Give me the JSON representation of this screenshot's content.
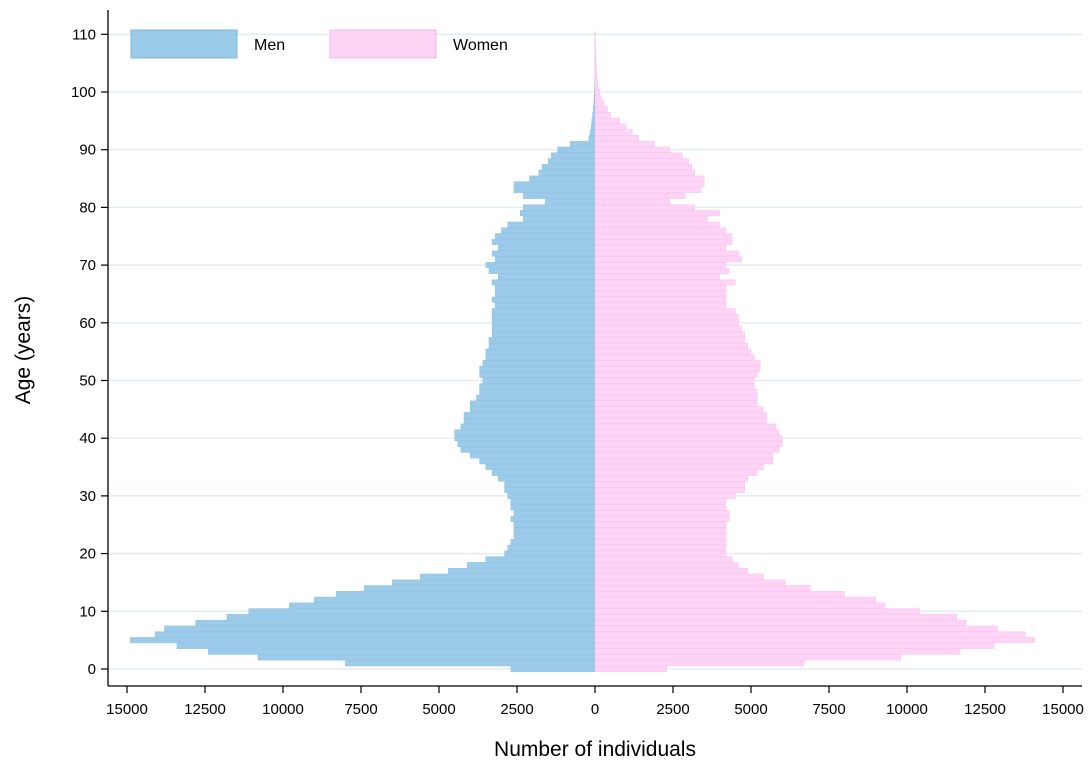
{
  "chart_data": {
    "type": "bar",
    "orientation": "horizontal",
    "title": "",
    "xlabel": "Number of individuals",
    "ylabel": "Age (years)",
    "x_ticks": [
      "15000",
      "12500",
      "10000",
      "7500",
      "5000",
      "2500",
      "0",
      "2500",
      "5000",
      "7500",
      "10000",
      "12500",
      "15000"
    ],
    "y_ticks": [
      "0",
      "10",
      "20",
      "30",
      "40",
      "50",
      "60",
      "70",
      "80",
      "90",
      "100",
      "110"
    ],
    "xlim": [
      -15000,
      15000
    ],
    "ylim": [
      0,
      110
    ],
    "grid": "horizontal",
    "legend_position": "top-left",
    "categories": [
      0,
      1,
      2,
      3,
      4,
      5,
      6,
      7,
      8,
      9,
      10,
      11,
      12,
      13,
      14,
      15,
      16,
      17,
      18,
      19,
      20,
      21,
      22,
      23,
      24,
      25,
      26,
      27,
      28,
      29,
      30,
      31,
      32,
      33,
      34,
      35,
      36,
      37,
      38,
      39,
      40,
      41,
      42,
      43,
      44,
      45,
      46,
      47,
      48,
      49,
      50,
      51,
      52,
      53,
      54,
      55,
      56,
      57,
      58,
      59,
      60,
      61,
      62,
      63,
      64,
      65,
      66,
      67,
      68,
      69,
      70,
      71,
      72,
      73,
      74,
      75,
      76,
      77,
      78,
      79,
      80,
      81,
      82,
      83,
      84,
      85,
      86,
      87,
      88,
      89,
      90,
      91,
      92,
      93,
      94,
      95,
      96,
      97,
      98,
      99,
      100,
      101,
      102,
      103,
      104,
      105,
      106,
      107,
      108,
      109,
      110
    ],
    "series": [
      {
        "name": "Men",
        "color": "#9ccbea",
        "edge": "#7fb6df",
        "values": [
          2700,
          8000,
          10800,
          12400,
          13400,
          14900,
          14100,
          13800,
          12800,
          11800,
          11100,
          9800,
          9000,
          8300,
          7400,
          6500,
          5600,
          4700,
          4100,
          3500,
          2900,
          2800,
          2700,
          2600,
          2600,
          2600,
          2700,
          2600,
          2700,
          2700,
          2800,
          2900,
          2900,
          3100,
          3300,
          3500,
          3700,
          4000,
          4300,
          4400,
          4500,
          4500,
          4300,
          4200,
          4200,
          4000,
          4000,
          3800,
          3700,
          3700,
          3600,
          3700,
          3700,
          3600,
          3500,
          3500,
          3400,
          3400,
          3300,
          3300,
          3300,
          3300,
          3300,
          3200,
          3300,
          3200,
          3200,
          3300,
          3100,
          3400,
          3500,
          3200,
          3300,
          3100,
          3300,
          3200,
          3000,
          2800,
          2300,
          2400,
          2300,
          1600,
          2300,
          2600,
          2600,
          2100,
          1800,
          1700,
          1500,
          1400,
          1200,
          800,
          200,
          150,
          120,
          100,
          80,
          60,
          40,
          30,
          20,
          15,
          10,
          8,
          5,
          4,
          3,
          2,
          2,
          1,
          1
        ]
      },
      {
        "name": "Women",
        "color": "#fdd3f6",
        "edge": "#f6b6ec",
        "values": [
          2300,
          6700,
          9800,
          11700,
          12800,
          14100,
          13800,
          12900,
          11900,
          11600,
          10400,
          9300,
          9000,
          8000,
          6900,
          6100,
          5400,
          4900,
          4600,
          4400,
          4200,
          4200,
          4200,
          4200,
          4200,
          4200,
          4300,
          4300,
          4200,
          4200,
          4500,
          4800,
          4800,
          4900,
          5200,
          5400,
          5700,
          5700,
          5900,
          6000,
          6000,
          5900,
          5800,
          5500,
          5500,
          5400,
          5200,
          5200,
          5200,
          5100,
          5100,
          5200,
          5300,
          5300,
          5100,
          5000,
          4900,
          4800,
          4800,
          4700,
          4600,
          4600,
          4500,
          4200,
          4200,
          4200,
          4200,
          4500,
          4000,
          4300,
          4200,
          4700,
          4600,
          4200,
          4400,
          4400,
          4200,
          4000,
          3600,
          4000,
          3200,
          2400,
          2900,
          3400,
          3500,
          3500,
          3200,
          3100,
          3000,
          2800,
          2400,
          1900,
          1400,
          1200,
          1000,
          800,
          500,
          400,
          300,
          200,
          150,
          100,
          80,
          60,
          50,
          40,
          30,
          25,
          20,
          15,
          10
        ]
      }
    ]
  }
}
